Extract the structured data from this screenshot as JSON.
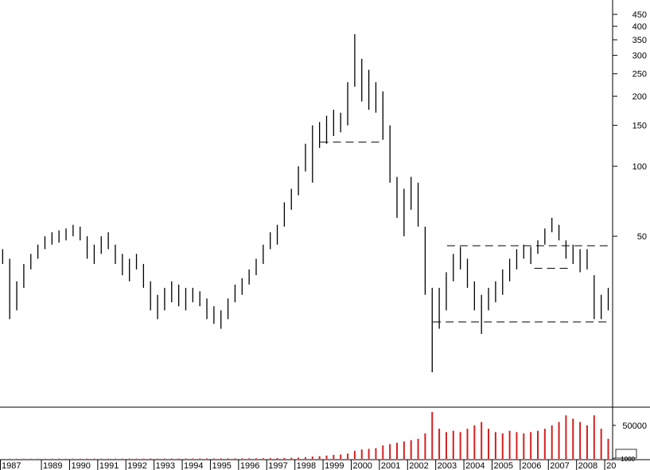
{
  "chart_data": {
    "type": "ohlc",
    "x": [
      1987.625,
      1987.875,
      1988.125,
      1988.375,
      1988.625,
      1988.875,
      1989.125,
      1989.375,
      1989.625,
      1989.875,
      1990.125,
      1990.375,
      1990.625,
      1990.875,
      1991.125,
      1991.375,
      1991.625,
      1991.875,
      1992.125,
      1992.375,
      1992.625,
      1992.875,
      1993.125,
      1993.375,
      1993.625,
      1993.875,
      1994.125,
      1994.375,
      1994.625,
      1994.875,
      1995.125,
      1995.375,
      1995.625,
      1995.875,
      1996.125,
      1996.375,
      1996.625,
      1996.875,
      1997.125,
      1997.375,
      1997.625,
      1997.875,
      1998.125,
      1998.375,
      1998.625,
      1998.875,
      1999.125,
      1999.375,
      1999.625,
      1999.875,
      2000.125,
      2000.375,
      2000.625,
      2000.875,
      2001.125,
      2001.375,
      2001.625,
      2001.875,
      2002.125,
      2002.375,
      2002.625,
      2002.875,
      2003.125,
      2003.375,
      2003.625,
      2003.875,
      2004.125,
      2004.375,
      2004.625,
      2004.875,
      2005.125,
      2005.375,
      2005.625,
      2005.875,
      2006.125,
      2006.375,
      2006.625,
      2006.875,
      2007.125,
      2007.375,
      2007.625,
      2007.875,
      2008.125,
      2008.375,
      2008.625,
      2008.875,
      2009.125
    ],
    "low": [
      38,
      22,
      24,
      30,
      36,
      40,
      44,
      46,
      47,
      48,
      50,
      48,
      40,
      38,
      42,
      44,
      38,
      34,
      32,
      36,
      30,
      24,
      22,
      24,
      26,
      25,
      24,
      26,
      25,
      22,
      21,
      20,
      22,
      26,
      28,
      31,
      34,
      38,
      44,
      46,
      55,
      65,
      75,
      95,
      85,
      120,
      125,
      135,
      140,
      150,
      220,
      190,
      175,
      170,
      130,
      85,
      60,
      50,
      65,
      55,
      28,
      13,
      20,
      24,
      32,
      36,
      30,
      24,
      19,
      24,
      26,
      28,
      32,
      36,
      40,
      38,
      42,
      46,
      52,
      48,
      40,
      38,
      35,
      36,
      22,
      22,
      24
    ],
    "high": [
      44,
      40,
      32,
      38,
      42,
      46,
      50,
      52,
      53,
      54,
      56,
      55,
      50,
      46,
      50,
      52,
      46,
      42,
      40,
      42,
      38,
      32,
      28,
      30,
      32,
      31,
      30,
      30,
      29,
      27,
      25,
      24,
      27,
      31,
      33,
      36,
      40,
      46,
      52,
      56,
      70,
      80,
      100,
      125,
      150,
      155,
      165,
      175,
      170,
      230,
      370,
      290,
      260,
      230,
      210,
      150,
      90,
      80,
      90,
      85,
      55,
      30,
      30,
      35,
      42,
      45,
      40,
      32,
      28,
      30,
      32,
      36,
      40,
      44,
      46,
      45,
      48,
      54,
      60,
      56,
      48,
      46,
      44,
      44,
      34,
      28,
      30
    ],
    "volume": [
      200,
      300,
      250,
      250,
      250,
      250,
      300,
      300,
      300,
      300,
      350,
      350,
      400,
      400,
      400,
      400,
      400,
      450,
      450,
      450,
      450,
      500,
      500,
      500,
      550,
      550,
      600,
      600,
      600,
      650,
      650,
      700,
      700,
      750,
      800,
      850,
      900,
      1000,
      1100,
      1200,
      1400,
      1600,
      2000,
      2500,
      3500,
      4000,
      5000,
      6000,
      6500,
      8000,
      12000,
      14000,
      15000,
      16000,
      20000,
      22000,
      24000,
      26000,
      28000,
      30000,
      38000,
      70000,
      45000,
      40000,
      42000,
      40000,
      45000,
      50000,
      55000,
      45000,
      40000,
      38000,
      42000,
      40000,
      38000,
      40000,
      42000,
      45000,
      50000,
      55000,
      65000,
      60000,
      55000,
      50000,
      65000,
      45000,
      30000
    ],
    "color": "#000000",
    "volume_color": "#d42020",
    "log_y": true,
    "xlim": [
      1987.53,
      2009.28
    ],
    "xticks": [
      1987,
      1989,
      1990,
      1991,
      1992,
      1993,
      1994,
      1995,
      1996,
      1997,
      1998,
      1999,
      2000,
      2001,
      2002,
      2003,
      2004,
      2005,
      2006,
      2007,
      2008,
      {
        "value": 2009,
        "label": "20"
      }
    ],
    "ylim": [
      9.2,
      519
    ],
    "yticks": [
      50,
      100,
      150,
      200,
      250,
      300,
      350,
      400,
      450
    ],
    "vlim": [
      0,
      76000
    ],
    "vticks": [
      50000,
      1000
    ],
    "trendlines": [
      {
        "x": [
          1998.9,
          2001.0
        ],
        "y": 127
      },
      {
        "x": [
          2003.4,
          2009.2
        ],
        "y": 45.5
      },
      {
        "x": [
          2002.9,
          2009.2
        ],
        "y": 21.4
      },
      {
        "x": [
          2006.5,
          2007.7
        ],
        "y": 36.4
      }
    ]
  }
}
